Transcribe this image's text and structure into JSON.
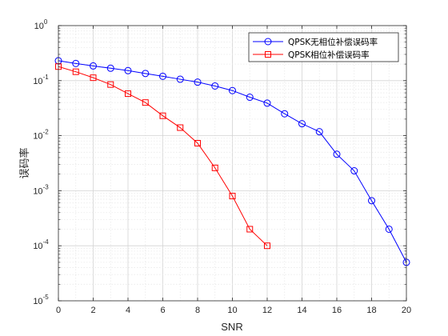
{
  "chart_data": {
    "type": "line",
    "xlabel": "SNR",
    "ylabel": "误码率",
    "xlim": [
      0,
      20
    ],
    "ylim": [
      1e-05,
      1
    ],
    "yscale": "log",
    "grid": true,
    "legend_position": "top-right",
    "x_ticks": [
      "0",
      "2",
      "4",
      "6",
      "8",
      "10",
      "12",
      "14",
      "16",
      "18",
      "20"
    ],
    "y_ticks": [
      {
        "base": "10",
        "exp": "-5",
        "value": 1e-05
      },
      {
        "base": "10",
        "exp": "-4",
        "value": 0.0001
      },
      {
        "base": "10",
        "exp": "-3",
        "value": 0.001
      },
      {
        "base": "10",
        "exp": "-2",
        "value": 0.01
      },
      {
        "base": "10",
        "exp": "-1",
        "value": 0.1
      },
      {
        "base": "10",
        "exp": "0",
        "value": 1
      }
    ],
    "series": [
      {
        "name": "QPSK无相位补偿误码率",
        "color": "#0000ff",
        "marker": "circle",
        "x": [
          0,
          1,
          2,
          3,
          4,
          5,
          6,
          7,
          8,
          9,
          10,
          11,
          12,
          13,
          14,
          15,
          16,
          17,
          18,
          19,
          20
        ],
        "y": [
          0.23,
          0.205,
          0.185,
          0.168,
          0.152,
          0.135,
          0.12,
          0.106,
          0.094,
          0.08,
          0.066,
          0.05,
          0.039,
          0.025,
          0.0165,
          0.0118,
          0.0046,
          0.0023,
          0.00066,
          0.0002,
          5e-05
        ]
      },
      {
        "name": "QPSK相位补偿误码率",
        "color": "#ff0000",
        "marker": "square",
        "x": [
          0,
          1,
          2,
          3,
          4,
          5,
          6,
          7,
          8,
          9,
          10,
          11,
          12
        ],
        "y": [
          0.18,
          0.145,
          0.113,
          0.085,
          0.058,
          0.04,
          0.023,
          0.014,
          0.0073,
          0.0026,
          0.0008,
          0.0002,
          0.0001
        ]
      }
    ]
  }
}
